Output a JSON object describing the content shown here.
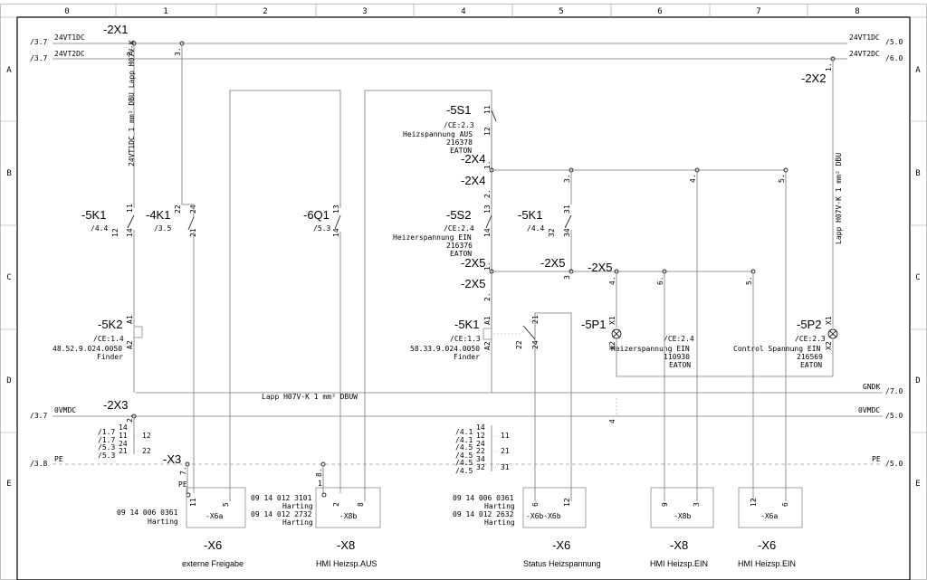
{
  "columns": [
    "0",
    "1",
    "2",
    "3",
    "4",
    "5",
    "6",
    "7",
    "8"
  ],
  "rows": [
    "A",
    "B",
    "C",
    "D",
    "E"
  ],
  "rails": {
    "r24v1": {
      "name": "24VT1DC",
      "ref_left": "/3.7",
      "ref_right": "/5.0"
    },
    "r24v2": {
      "name": "24VT2DC",
      "ref_left": "/3.7",
      "ref_right": "/6.0"
    },
    "gndk": {
      "name": "GNDK",
      "ref_right": "/7.0"
    },
    "r0v": {
      "name": "0VMDC",
      "ref_left": "/3.7",
      "ref_right": "/5.0"
    },
    "pe": {
      "name": "PE",
      "ref_left": "/3.8",
      "ref_right": "/5.0"
    }
  },
  "terminals": {
    "x1": "-2X1",
    "x2": "-2X2",
    "x3": "-2X3",
    "x4a": "-2X4",
    "x4b": "-2X4",
    "x5a": "-2X5",
    "x5b": "-2X5",
    "x5c": "-2X5",
    "x5d": "-2X5",
    "x3pe": "-X3"
  },
  "cable_left": "24VT1DC 1 mm² DBU Lapp H07V-K",
  "cable_right": "Lapp H07V-K 1 mm² DBU",
  "cable_bottom": "Lapp H07V-K  1 mm² DBUW",
  "contacts": {
    "k5k1": {
      "name": "-5K1",
      "ref": "/4.4",
      "p1": "11",
      "p2": "12",
      "p3": "14"
    },
    "k4k1": {
      "name": "-4K1",
      "ref": "/3.5",
      "p1": "22",
      "p2": "24",
      "p3": "21"
    },
    "q6q1": {
      "name": "-6Q1",
      "ref": "/5.3",
      "p1": "13",
      "p2": "14"
    },
    "k5k1r": {
      "name": "-5K1",
      "ref": "/4.4",
      "p1": "31",
      "p2": "32",
      "p3": "34"
    }
  },
  "switches": {
    "s1": {
      "name": "-5S1",
      "ref": "/CE:2.3",
      "desc": "Heizspannung AUS",
      "part": "216378",
      "maker": "EATON",
      "p1": "11",
      "p2": "12"
    },
    "s2": {
      "name": "-5S2",
      "ref": "/CE:2.4",
      "desc": "Heizerspannung EIN",
      "part": "216376",
      "maker": "EATON",
      "p1": "13",
      "p2": "14"
    }
  },
  "relays": {
    "k2": {
      "name": "-5K2",
      "ref": "/CE:1.4",
      "part": "48.52.9.024.0050",
      "maker": "Finder",
      "a1": "A1",
      "a2": "A2"
    },
    "k1": {
      "name": "-5K1",
      "ref": "/CE:1.3",
      "part": "58.33.9.024.0050",
      "maker": "Finder",
      "a1": "A1",
      "a2": "A2"
    }
  },
  "lamps": {
    "p1": {
      "name": "-5P1",
      "ref": "/CE:2.4",
      "desc": "Heizerspannung EIN",
      "part": "110930",
      "maker": "EATON",
      "x1": "X1",
      "x2": "X2"
    },
    "p2": {
      "name": "-5P2",
      "ref": "/CE:2.3",
      "desc": "Control Spannung EIN",
      "part": "216569",
      "maker": "EATON",
      "x1": "X1",
      "x2": "X2"
    }
  },
  "xref_left": {
    "lines": [
      "/1.7",
      "/1.7",
      "/5.3",
      "/5.3"
    ],
    "pins_a": [
      "14",
      "11",
      "24",
      "21"
    ],
    "pins_b": [
      "12",
      "22"
    ]
  },
  "xref_right": {
    "lines": [
      "/4.1",
      "/4.1",
      "/4.5",
      "/4.5",
      "/4.5",
      "/4.5"
    ],
    "pins_a": [
      "14",
      "12",
      "24",
      "22",
      "34",
      "32"
    ],
    "pins_b": [
      "11",
      "21",
      "31"
    ]
  },
  "connectors": {
    "c1": {
      "part": "09 14 006 0361",
      "maker": "Harting",
      "tag": "-X6a",
      "name": "-X6",
      "title": "externe Freigabe",
      "pin_a": "11",
      "pin_b": "5"
    },
    "c2": {
      "part1": "09 14 012 3101",
      "maker1": "Harting",
      "part2": "09 14 012 2732",
      "maker2": "Harting",
      "tag": "-X8b",
      "name": "-X8",
      "title": "HMI Heizsp.AUS",
      "pin_a": "2",
      "pin_b": "8"
    },
    "c3": {
      "part1": "09 14 006 0361",
      "maker1": "Harting",
      "part2": "09 14 012 2632",
      "maker2": "Harting",
      "tag": "-X6b-X6b",
      "name": "-X6",
      "title": "Status Heizspannung",
      "pin_a": "6",
      "pin_b": "12"
    },
    "c4": {
      "tag": "-X8b",
      "name": "-X8",
      "title": "HMI Heizsp.EIN",
      "pin_a": "9",
      "pin_b": "3"
    },
    "c5": {
      "tag": "-X6a",
      "name": "-X6",
      "title": "HMI Heizsp.EIN",
      "pin_a": "12",
      "pin_b": "6"
    }
  },
  "pin_numbers": {
    "x1_2": "2.",
    "x1_3": "3.",
    "x2_1": "1.",
    "x3_2": "2.",
    "x4a_1": "1.",
    "x4a_3": "3.",
    "x4a_4": "4.",
    "x4a_5": "5.",
    "x4b_2": "2.",
    "x5a_1": "1.",
    "x5a_3": "3",
    "x5b_2": "2.",
    "x5c_4": "4.",
    "x5c_6": "6.",
    "x5c_5": "5.",
    "x3pe_7": "7.",
    "x3pe_pe": "PE",
    "x8_8": "8.",
    "x8_1": "1",
    "r_22": "22",
    "r_24": "24",
    "r_21": "21",
    "d4": "4"
  }
}
